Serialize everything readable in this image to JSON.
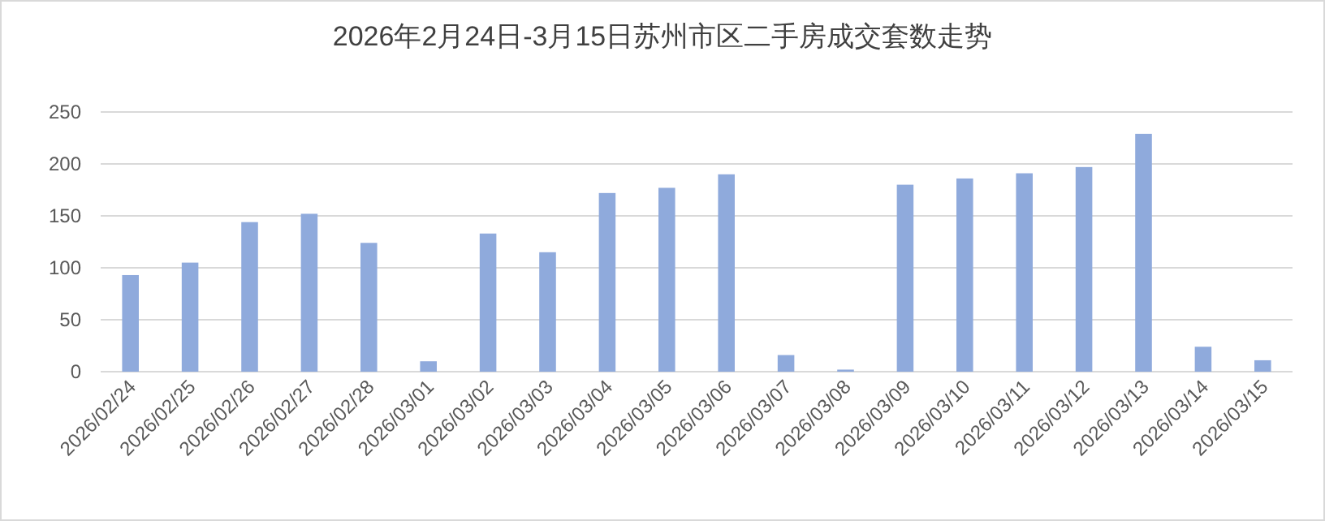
{
  "chart_data": {
    "type": "bar",
    "title": "2026年2月24日-3月15日苏州市区二手房成交套数走势",
    "categories": [
      "2026/02/24",
      "2026/02/25",
      "2026/02/26",
      "2026/02/27",
      "2026/02/28",
      "2026/03/01",
      "2026/03/02",
      "2026/03/03",
      "2026/03/04",
      "2026/03/05",
      "2026/03/06",
      "2026/03/07",
      "2026/03/08",
      "2026/03/09",
      "2026/03/10",
      "2026/03/11",
      "2026/03/12",
      "2026/03/13",
      "2026/03/14",
      "2026/03/15"
    ],
    "values": [
      93,
      105,
      144,
      152,
      124,
      10,
      133,
      115,
      172,
      177,
      190,
      16,
      2,
      180,
      186,
      191,
      197,
      229,
      24,
      11
    ],
    "color": "#8faadc",
    "ylim": [
      0,
      250
    ],
    "yticks": [
      0,
      50,
      100,
      150,
      200,
      250
    ],
    "grid": "y"
  }
}
